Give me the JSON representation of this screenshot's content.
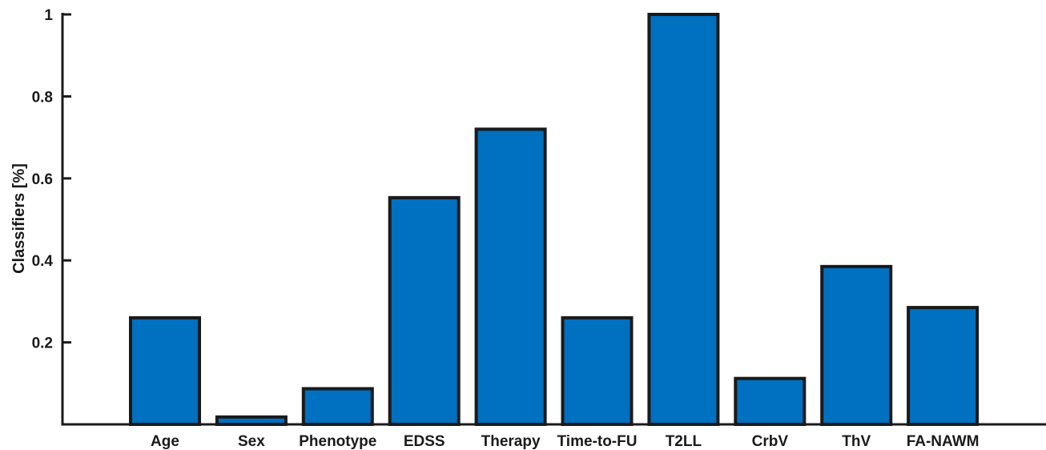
{
  "chart_data": {
    "type": "bar",
    "title": "",
    "xlabel": "",
    "ylabel": "Classifiers [%]",
    "categories": [
      "Age",
      "Sex",
      "Phenotype",
      "EDSS",
      "Therapy",
      "Time-to-FU",
      "T2LL",
      "CrbV",
      "ThV",
      "FA-NAWM"
    ],
    "values": [
      0.26,
      0.018,
      0.087,
      0.553,
      0.72,
      0.26,
      1.0,
      0.112,
      0.385,
      0.285
    ],
    "ylim": [
      0,
      1
    ],
    "yticks": [
      0.2,
      0.4,
      0.6,
      0.8,
      1
    ],
    "ytick_labels": [
      "0.2",
      "0.4",
      "0.6",
      "0.8",
      "1"
    ],
    "grid": false,
    "bar_color": "#0070C0",
    "edge_color": "#1a1a1a"
  }
}
